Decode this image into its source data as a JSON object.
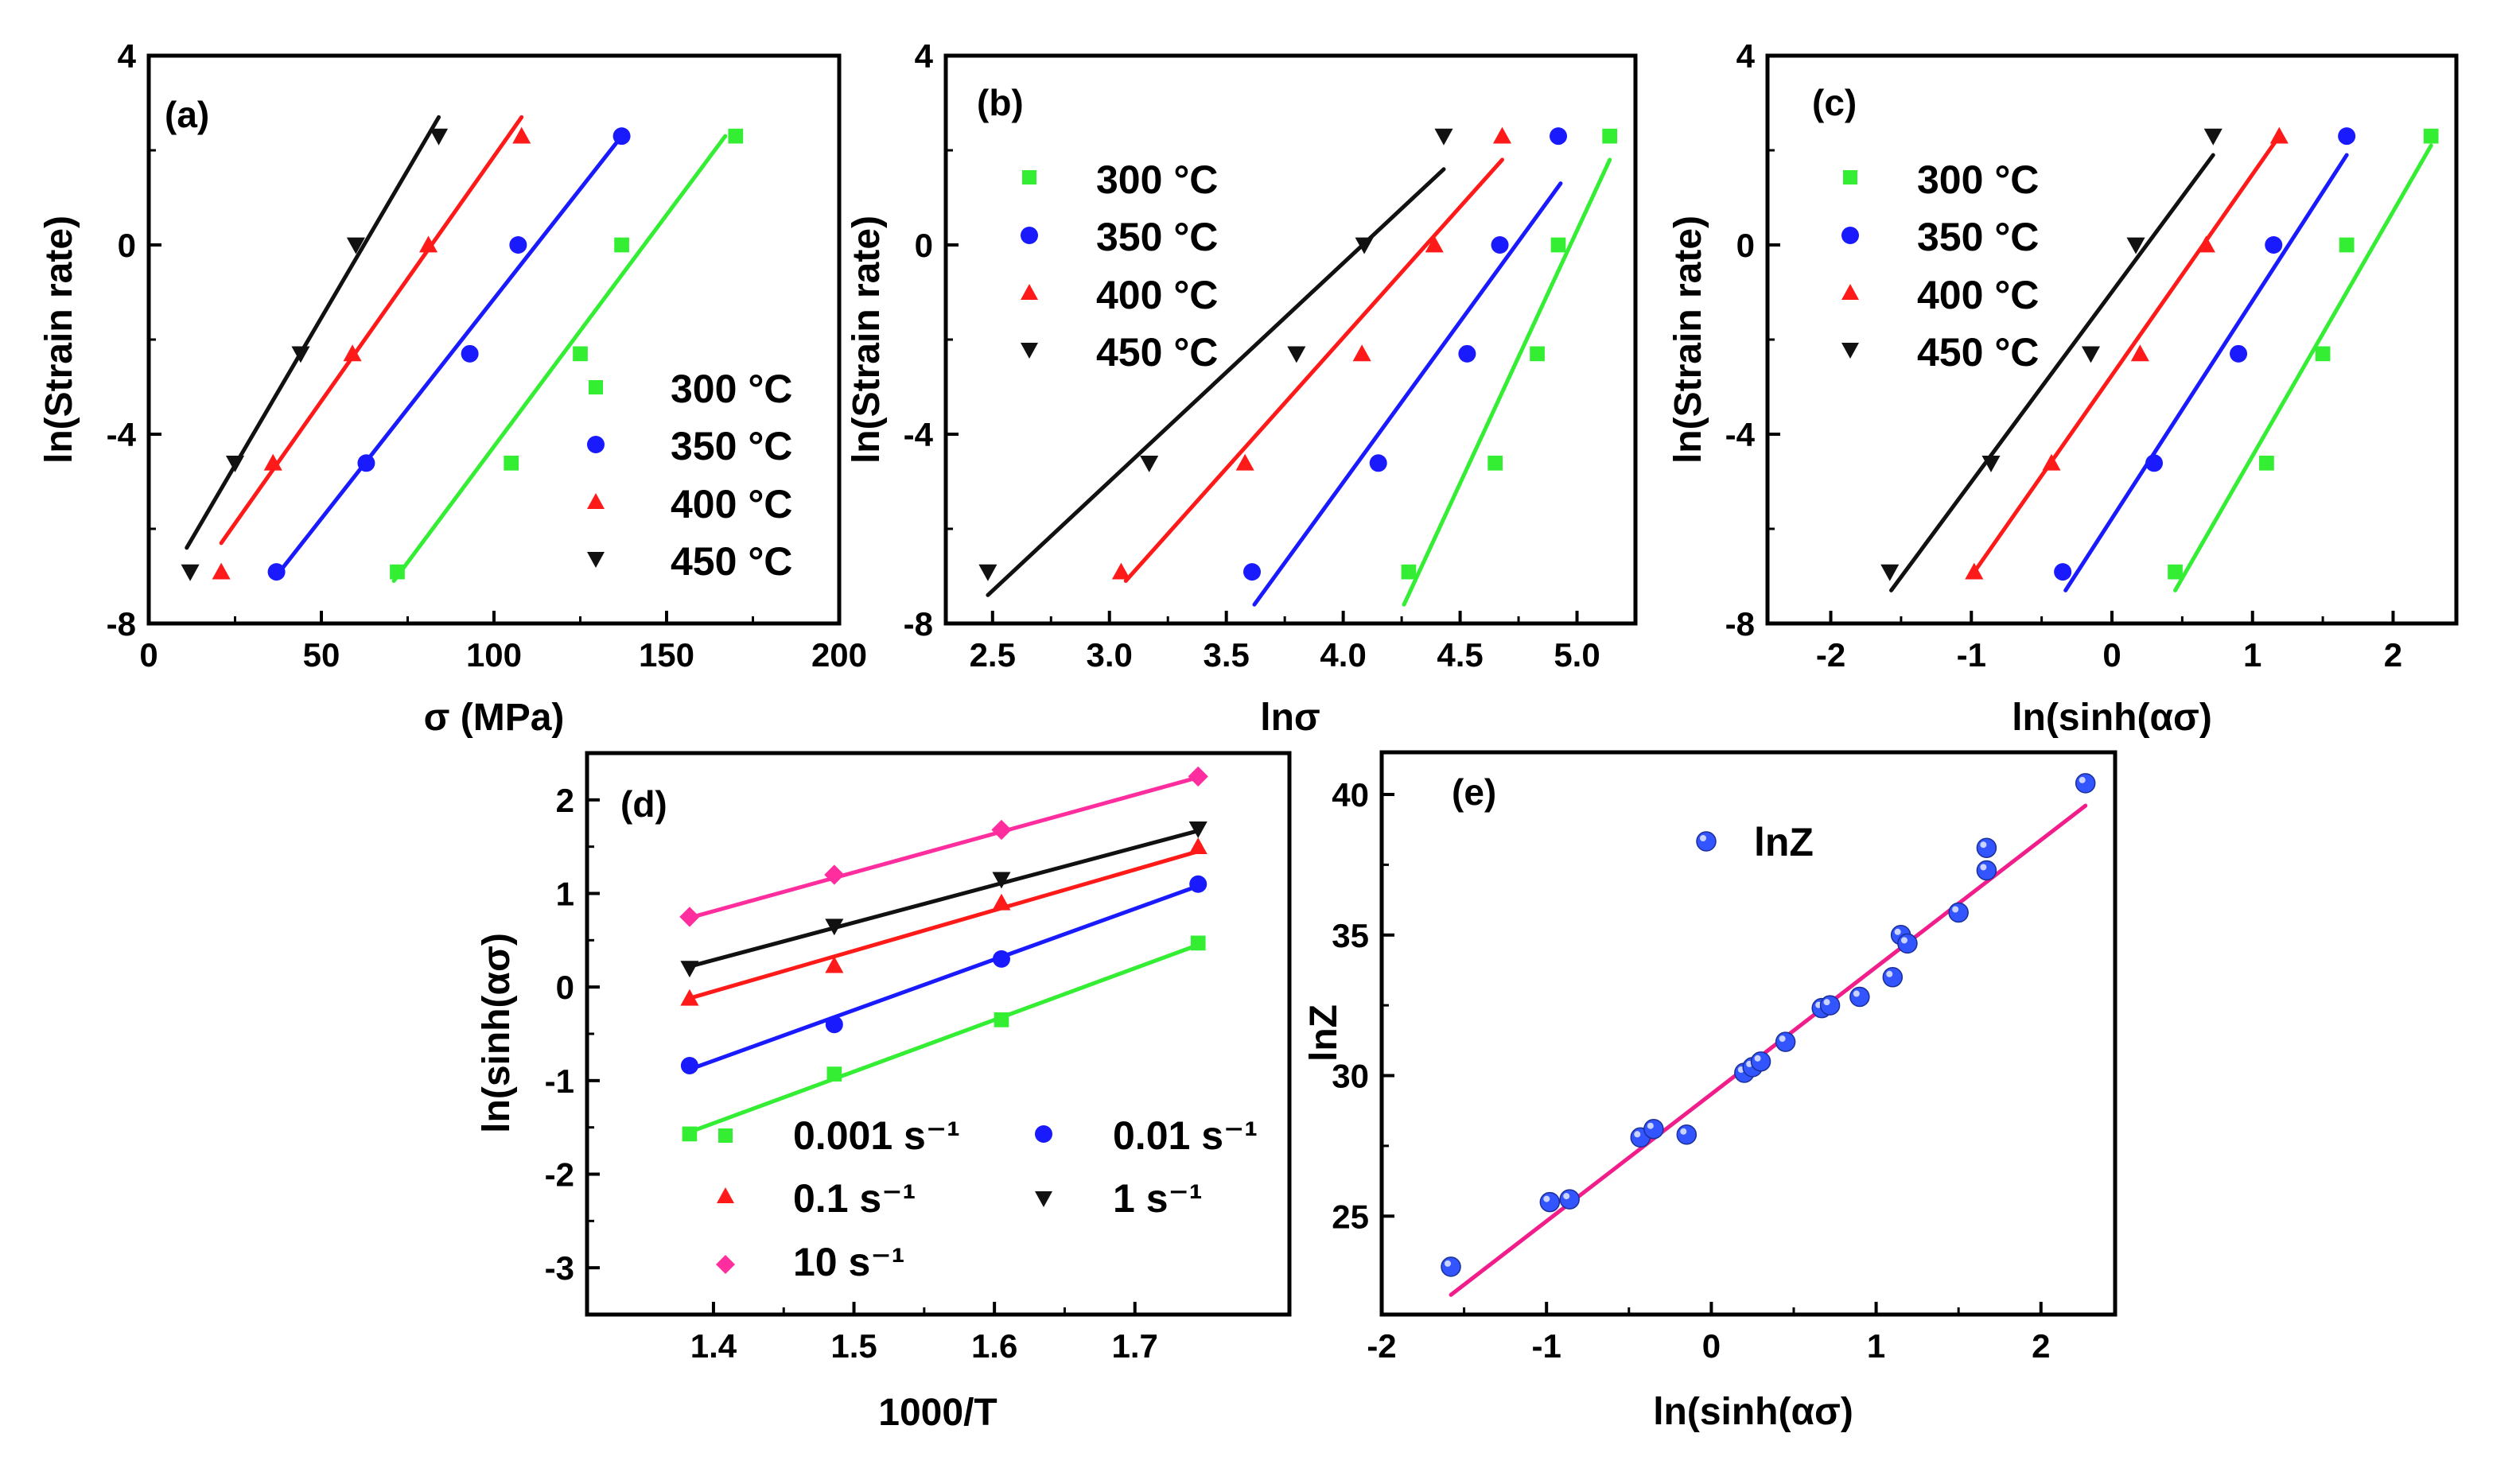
{
  "chart_data": [
    {
      "panel": "a",
      "type": "scatter",
      "label": "(a)",
      "xlabel": "σ (MPa)",
      "ylabel": "ln(Strain rate)",
      "xlim": [
        0,
        200
      ],
      "ylim": [
        -8,
        4
      ],
      "xticks": [
        "0",
        "50",
        "100",
        "150",
        "200"
      ],
      "yticks": [
        "-8",
        "-4",
        "0",
        "4"
      ],
      "legend_position": "lower-right",
      "series": [
        {
          "name": "300 °C",
          "color": "#33ee33",
          "marker": "square",
          "x": [
            72,
            105,
            125,
            137,
            170
          ],
          "y": [
            -6.91,
            -4.61,
            -2.3,
            0,
            2.3
          ]
        },
        {
          "name": "350 °C",
          "color": "#1a1aff",
          "marker": "circle",
          "x": [
            37,
            63,
            93,
            107,
            137
          ],
          "y": [
            -6.91,
            -4.61,
            -2.3,
            0,
            2.3
          ]
        },
        {
          "name": "400 °C",
          "color": "#ff1a1a",
          "marker": "triangle-up",
          "x": [
            21,
            36,
            59,
            81,
            108
          ],
          "y": [
            -6.91,
            -4.61,
            -2.3,
            0,
            2.3
          ]
        },
        {
          "name": "450 °C",
          "color": "#111111",
          "marker": "triangle-down",
          "x": [
            12,
            25,
            44,
            60,
            84
          ],
          "y": [
            -6.91,
            -4.61,
            -2.3,
            0,
            2.3
          ]
        }
      ],
      "fits": [
        {
          "color": "#33ee33",
          "x": [
            71,
            167
          ],
          "y": [
            -7.1,
            2.3
          ]
        },
        {
          "color": "#1a1aff",
          "x": [
            38,
            137
          ],
          "y": [
            -6.9,
            2.3
          ]
        },
        {
          "color": "#ff1a1a",
          "x": [
            21,
            108
          ],
          "y": [
            -6.3,
            2.7
          ]
        },
        {
          "color": "#111111",
          "x": [
            11,
            84
          ],
          "y": [
            -6.4,
            2.7
          ]
        }
      ]
    },
    {
      "panel": "b",
      "type": "scatter",
      "label": "(b)",
      "xlabel": "lnσ",
      "ylabel": "ln(Strain rate)",
      "xlim": [
        2.3,
        5.25
      ],
      "ylim": [
        -8,
        4
      ],
      "xticks": [
        "2.5",
        "3.0",
        "3.5",
        "4.0",
        "4.5",
        "5.0"
      ],
      "yticks": [
        "-8",
        "-4",
        "0",
        "4"
      ],
      "legend_position": "top-left",
      "series": [
        {
          "name": "300 °C",
          "color": "#33ee33",
          "marker": "square",
          "x": [
            4.28,
            4.65,
            4.83,
            4.92,
            5.14
          ],
          "y": [
            -6.91,
            -4.61,
            -2.3,
            0,
            2.3
          ]
        },
        {
          "name": "350 °C",
          "color": "#1a1aff",
          "marker": "circle",
          "x": [
            3.61,
            4.15,
            4.53,
            4.67,
            4.92
          ],
          "y": [
            -6.91,
            -4.61,
            -2.3,
            0,
            2.3
          ]
        },
        {
          "name": "400 °C",
          "color": "#ff1a1a",
          "marker": "triangle-up",
          "x": [
            3.05,
            3.58,
            4.08,
            4.39,
            4.68
          ],
          "y": [
            -6.91,
            -4.61,
            -2.3,
            0,
            2.3
          ]
        },
        {
          "name": "450 °C",
          "color": "#111111",
          "marker": "triangle-down",
          "x": [
            2.48,
            3.17,
            3.8,
            4.09,
            4.43
          ],
          "y": [
            -6.91,
            -4.61,
            -2.3,
            0,
            2.3
          ]
        }
      ],
      "fits": [
        {
          "color": "#33ee33",
          "x": [
            4.26,
            5.14
          ],
          "y": [
            -7.6,
            1.8
          ]
        },
        {
          "color": "#1a1aff",
          "x": [
            3.62,
            4.93
          ],
          "y": [
            -7.6,
            1.3
          ]
        },
        {
          "color": "#ff1a1a",
          "x": [
            3.07,
            4.68
          ],
          "y": [
            -7.1,
            1.8
          ]
        },
        {
          "color": "#111111",
          "x": [
            2.48,
            4.43
          ],
          "y": [
            -7.4,
            1.6
          ]
        }
      ]
    },
    {
      "panel": "c",
      "type": "scatter",
      "label": "(c)",
      "xlabel": "ln(sinh(ασ)",
      "ylabel": "ln(Strain rate)",
      "xlim": [
        -2.45,
        2.45
      ],
      "ylim": [
        -8,
        4
      ],
      "xticks": [
        "-2",
        "-1",
        "0",
        "1",
        "2"
      ],
      "yticks": [
        "-8",
        "-4",
        "0",
        "4"
      ],
      "legend_position": "top-left",
      "series": [
        {
          "name": "300 °C",
          "color": "#33ee33",
          "marker": "square",
          "x": [
            0.45,
            1.1,
            1.5,
            1.67,
            2.27
          ],
          "y": [
            -6.91,
            -4.61,
            -2.3,
            0,
            2.3
          ]
        },
        {
          "name": "350 °C",
          "color": "#1a1aff",
          "marker": "circle",
          "x": [
            -0.35,
            0.3,
            0.9,
            1.15,
            1.67
          ],
          "y": [
            -6.91,
            -4.61,
            -2.3,
            0,
            2.3
          ]
        },
        {
          "name": "400 °C",
          "color": "#ff1a1a",
          "marker": "triangle-up",
          "x": [
            -0.98,
            -0.43,
            0.2,
            0.67,
            1.19
          ],
          "y": [
            -6.91,
            -4.61,
            -2.3,
            0,
            2.3
          ]
        },
        {
          "name": "450 °C",
          "color": "#111111",
          "marker": "triangle-down",
          "x": [
            -1.58,
            -0.86,
            -0.15,
            0.17,
            0.72
          ],
          "y": [
            -6.91,
            -4.61,
            -2.3,
            0,
            2.3
          ]
        }
      ],
      "fits": [
        {
          "color": "#33ee33",
          "x": [
            0.45,
            2.27
          ],
          "y": [
            -7.3,
            2.1
          ]
        },
        {
          "color": "#1a1aff",
          "x": [
            -0.33,
            1.67
          ],
          "y": [
            -7.3,
            1.9
          ]
        },
        {
          "color": "#ff1a1a",
          "x": [
            -1.0,
            1.19
          ],
          "y": [
            -7.0,
            2.3
          ]
        },
        {
          "color": "#111111",
          "x": [
            -1.57,
            0.72
          ],
          "y": [
            -7.3,
            1.9
          ]
        }
      ]
    },
    {
      "panel": "d",
      "type": "scatter",
      "label": "(d)",
      "xlabel": "1000/T",
      "ylabel": "ln(sinh(ασ)",
      "xlim": [
        1.31,
        1.81
      ],
      "ylim": [
        -3.5,
        2.5
      ],
      "xticks": [
        "1.4",
        "1.5",
        "1.6",
        "1.7"
      ],
      "yticks": [
        "-3",
        "-2",
        "-1",
        "0",
        "1",
        "2"
      ],
      "legend_position": "bottom",
      "series": [
        {
          "name": "0.001 s⁻¹",
          "color": "#33ee33",
          "marker": "square",
          "x": [
            1.383,
            1.486,
            1.605,
            1.745
          ],
          "y": [
            -1.57,
            -0.93,
            -0.35,
            0.47
          ]
        },
        {
          "name": "0.01 s⁻¹",
          "color": "#1a1aff",
          "marker": "circle",
          "x": [
            1.383,
            1.486,
            1.605,
            1.745
          ],
          "y": [
            -0.84,
            -0.4,
            0.3,
            1.1
          ]
        },
        {
          "name": "0.1 s⁻¹",
          "color": "#ff1a1a",
          "marker": "triangle-up",
          "x": [
            1.383,
            1.486,
            1.605,
            1.745
          ],
          "y": [
            -0.12,
            0.23,
            0.9,
            1.5
          ]
        },
        {
          "name": "1 s⁻¹",
          "color": "#111111",
          "marker": "triangle-down",
          "x": [
            1.383,
            1.486,
            1.605,
            1.745
          ],
          "y": [
            0.2,
            0.65,
            1.15,
            1.69
          ]
        },
        {
          "name": "10 s⁻¹",
          "color": "#ff2d9e",
          "marker": "diamond",
          "x": [
            1.383,
            1.486,
            1.605,
            1.745
          ],
          "y": [
            0.75,
            1.2,
            1.68,
            2.25
          ]
        }
      ],
      "fits": [
        {
          "color": "#33ee33",
          "x": [
            1.383,
            1.745
          ],
          "y": [
            -1.55,
            0.45
          ]
        },
        {
          "color": "#1a1aff",
          "x": [
            1.383,
            1.745
          ],
          "y": [
            -0.88,
            1.08
          ]
        },
        {
          "color": "#ff1a1a",
          "x": [
            1.383,
            1.745
          ],
          "y": [
            -0.12,
            1.45
          ]
        },
        {
          "color": "#111111",
          "x": [
            1.383,
            1.745
          ],
          "y": [
            0.22,
            1.67
          ]
        },
        {
          "color": "#ff2d9e",
          "x": [
            1.383,
            1.745
          ],
          "y": [
            0.74,
            2.24
          ]
        }
      ]
    },
    {
      "panel": "e",
      "type": "scatter",
      "label": "(e)",
      "xlabel": "ln(sinh(ασ)",
      "ylabel": "lnZ",
      "xlim": [
        -2,
        2.45
      ],
      "ylim": [
        21.5,
        41.5
      ],
      "xticks": [
        "-2",
        "-1",
        "0",
        "1",
        "2"
      ],
      "yticks": [
        "25",
        "30",
        "35",
        "40"
      ],
      "legend_position": "top-center",
      "series": [
        {
          "name": "lnZ",
          "color": "#3355ff",
          "marker": "sphere",
          "x": [
            -1.58,
            -0.98,
            -0.86,
            -0.43,
            -0.35,
            -0.15,
            0.2,
            0.25,
            0.3,
            0.45,
            0.67,
            0.72,
            0.9,
            1.1,
            1.15,
            1.19,
            1.5,
            1.67,
            1.67,
            2.27
          ],
          "y": [
            23.2,
            25.5,
            25.6,
            27.8,
            28.1,
            27.9,
            30.1,
            30.3,
            30.5,
            31.2,
            32.4,
            32.5,
            32.8,
            33.5,
            35.0,
            34.7,
            35.8,
            37.3,
            38.1,
            40.4
          ]
        }
      ],
      "fits": [
        {
          "color": "#f01d8a",
          "x": [
            -1.58,
            2.27
          ],
          "y": [
            22.2,
            39.6
          ]
        }
      ]
    }
  ]
}
